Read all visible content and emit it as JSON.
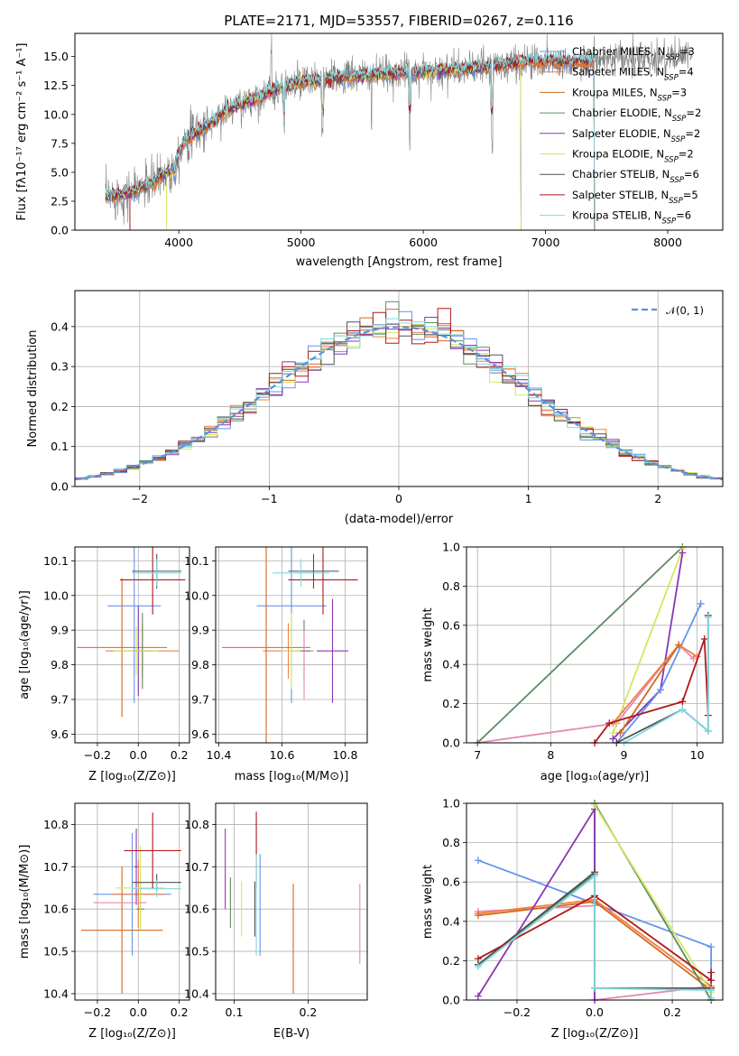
{
  "colors": {
    "chabrier_miles": "#6495ED",
    "salpeter_miles": "#F08040",
    "kroupa_miles": "#D2691E",
    "chabrier_elodie": "#5F8A60",
    "salpeter_elodie": "#8B35B5",
    "kroupa_elodie": "#D0E860",
    "chabrier_stelib": "#505050",
    "salpeter_stelib": "#B01818",
    "kroupa_stelib": "#80D8E0",
    "normal": "#5B8EE0",
    "pink": "#E888B8"
  },
  "chart_data": [
    {
      "id": "spectrum",
      "type": "line",
      "title": "PLATE=2171, MJD=53557, FIBERID=0267, z=0.116",
      "xlabel": "wavelength [Angstrom, rest frame]",
      "ylabel": "Flux [fλ10⁻¹⁷ erg cm⁻² s⁻¹ A⁻¹]",
      "xlim": [
        3150,
        8450
      ],
      "ylim": [
        0,
        17
      ],
      "xticks": [
        4000,
        5000,
        6000,
        7000,
        8000
      ],
      "yticks": [
        0.0,
        2.5,
        5.0,
        7.5,
        10.0,
        12.5,
        15.0
      ],
      "grid": false,
      "legend_position": "top-right",
      "continuum": {
        "x": [
          3400,
          3600,
          3800,
          3950,
          4050,
          4200,
          4400,
          4600,
          4800,
          5000,
          5200,
          5400,
          5600,
          5800,
          6000,
          6200,
          6400,
          6600,
          6800,
          7000,
          7200,
          7400,
          7600,
          7800,
          8000,
          8200
        ],
        "y": [
          2.9,
          3.2,
          4.2,
          5.5,
          7.8,
          8.8,
          10.4,
          11.3,
          12.2,
          12.8,
          13.0,
          13.3,
          13.4,
          13.6,
          13.7,
          13.8,
          14.0,
          14.2,
          14.5,
          14.6,
          14.5,
          14.6,
          14.7,
          14.8,
          14.9,
          15.0
        ]
      },
      "series": [
        {
          "name": "Chabrier MILES, N_SSP=3",
          "color": "#6495ED",
          "xmax": 7400
        },
        {
          "name": "Salpeter MILES, N_SSP=4",
          "color": "#F08040",
          "xmax": 7400
        },
        {
          "name": "Kroupa MILES, N_SSP=3",
          "color": "#D2691E",
          "xmax": 7400
        },
        {
          "name": "Chabrier ELODIE, N_SSP=2",
          "color": "#5F8A60",
          "xmax": 6800
        },
        {
          "name": "Salpeter ELODIE, N_SSP=2",
          "color": "#8B35B5",
          "xmax": 6800
        },
        {
          "name": "Kroupa ELODIE, N_SSP=2",
          "color": "#D0E860",
          "xmax": 6800
        },
        {
          "name": "Chabrier STELIB, N_SSP=6",
          "color": "#505050",
          "xmax": 7400
        },
        {
          "name": "Salpeter STELIB, N_SSP=5",
          "color": "#B01818",
          "xmax": 7400
        },
        {
          "name": "Kroupa STELIB, N_SSP=6",
          "color": "#80D8E0",
          "xmax": 7400
        }
      ],
      "legend_labels": [
        {
          "base": "Chabrier MILES, N",
          "sub": "SSP",
          "tail": "=3"
        },
        {
          "base": "Salpeter MILES, N",
          "sub": "SSP",
          "tail": "=4"
        },
        {
          "base": "Kroupa MILES, N",
          "sub": "SSP",
          "tail": "=3"
        },
        {
          "base": "Chabrier ELODIE, N",
          "sub": "SSP",
          "tail": "=2"
        },
        {
          "base": "Salpeter ELODIE, N",
          "sub": "SSP",
          "tail": "=2"
        },
        {
          "base": "Kroupa ELODIE, N",
          "sub": "SSP",
          "tail": "=2"
        },
        {
          "base": "Chabrier STELIB, N",
          "sub": "SSP",
          "tail": "=6"
        },
        {
          "base": "Salpeter STELIB, N",
          "sub": "SSP",
          "tail": "=5"
        },
        {
          "base": "Kroupa STELIB, N",
          "sub": "SSP",
          "tail": "=6"
        }
      ]
    },
    {
      "id": "residuals",
      "type": "histogram",
      "xlabel": "(data-model)/error",
      "ylabel": "Normed distribution",
      "xlim": [
        -2.5,
        2.5
      ],
      "ylim": [
        0,
        0.49
      ],
      "xticks": [
        -2,
        -1,
        0,
        1,
        2
      ],
      "xtick_labels": [
        "−2",
        "−1",
        "0",
        "1",
        "2"
      ],
      "yticks": [
        0.0,
        0.1,
        0.2,
        0.3,
        0.4
      ],
      "grid": true,
      "legend_position": "top-right",
      "legend_label": "𝒩(0, 1)",
      "bin_width": 0.1
    },
    {
      "id": "age_vs_Z",
      "type": "errorbar",
      "xlabel": "Z [log₁₀(Z/Z⊙)]",
      "ylabel": "age  [log₁₀(age/yr)]",
      "xlim": [
        -0.31,
        0.25
      ],
      "ylim": [
        9.575,
        10.14
      ],
      "xticks": [
        -0.2,
        0.0,
        0.2
      ],
      "xtick_labels": [
        "−0.2",
        "0.0",
        "0.2"
      ],
      "yticks": [
        9.6,
        9.7,
        9.8,
        9.9,
        10.0,
        10.1
      ],
      "grid": true,
      "points": [
        {
          "x": -0.02,
          "y": 9.97,
          "xerr": 0.13,
          "yerr": 0.28,
          "color": "#6495ED"
        },
        {
          "x": 0.02,
          "y": 9.84,
          "xerr": 0.18,
          "yerr": 0.08,
          "color": "#F08040"
        },
        {
          "x": -0.08,
          "y": 9.85,
          "xerr": 0.22,
          "yerr": 0.2,
          "color": "#D2691E"
        },
        {
          "x": 0.02,
          "y": 9.84,
          "xerr": 0.05,
          "yerr": 0.11,
          "color": "#5F8A60"
        },
        {
          "x": 0.0,
          "y": 9.84,
          "xerr": 0.02,
          "yerr": 0.13,
          "color": "#8B35B5"
        },
        {
          "x": -0.01,
          "y": 9.84,
          "xerr": 0.11,
          "yerr": 0.07,
          "color": "#D0E860"
        },
        {
          "x": 0.09,
          "y": 10.07,
          "xerr": 0.12,
          "yerr": 0.05,
          "color": "#505050"
        },
        {
          "x": 0.07,
          "y": 10.045,
          "xerr": 0.16,
          "yerr": 0.1,
          "color": "#B01818"
        },
        {
          "x": 0.09,
          "y": 10.065,
          "xerr": 0.12,
          "yerr": 0.04,
          "color": "#80D8E0"
        }
      ]
    },
    {
      "id": "age_vs_mass",
      "type": "errorbar",
      "xlabel": "mass [log₁₀(M/M⊙)]",
      "xlim": [
        10.39,
        10.87
      ],
      "ylim": [
        9.575,
        10.14
      ],
      "xticks": [
        10.4,
        10.6,
        10.8
      ],
      "yticks": [
        9.6,
        9.7,
        9.8,
        9.9,
        10.0,
        10.1
      ],
      "grid": true,
      "points": [
        {
          "x": 10.63,
          "y": 9.97,
          "xerr": 0.11,
          "yerr": 0.28,
          "color": "#6495ED"
        },
        {
          "x": 10.62,
          "y": 9.84,
          "xerr": 0.08,
          "yerr": 0.08,
          "color": "#F08040"
        },
        {
          "x": 10.55,
          "y": 9.85,
          "xerr": 0.14,
          "yerr": 0.3,
          "color": "#D2691E"
        },
        {
          "x": 10.67,
          "y": 9.84,
          "xerr": 0.02,
          "yerr": 0.09,
          "color": "#5F8A60"
        },
        {
          "x": 10.76,
          "y": 9.84,
          "xerr": 0.05,
          "yerr": 0.15,
          "color": "#8B35B5"
        },
        {
          "x": 10.63,
          "y": 9.84,
          "xerr": 0.03,
          "yerr": 0.11,
          "color": "#D0E860"
        },
        {
          "x": 10.7,
          "y": 10.07,
          "xerr": 0.08,
          "yerr": 0.05,
          "color": "#505050"
        },
        {
          "x": 10.73,
          "y": 10.045,
          "xerr": 0.11,
          "yerr": 0.1,
          "color": "#B01818"
        },
        {
          "x": 10.66,
          "y": 10.065,
          "xerr": 0.09,
          "yerr": 0.04,
          "color": "#80D8E0"
        },
        {
          "x": 10.67,
          "y": 9.8,
          "xerr": 0.0,
          "yerr": 0.1,
          "color": "#E888B8"
        }
      ]
    },
    {
      "id": "mass_weight_vs_age",
      "type": "line",
      "xlabel": "age  [log₁₀(age/yr)]",
      "ylabel": "mass weight",
      "xlim": [
        6.85,
        10.35
      ],
      "ylim": [
        0,
        1
      ],
      "xticks": [
        7,
        8,
        9,
        10
      ],
      "yticks": [
        0.0,
        0.2,
        0.4,
        0.6,
        0.8,
        1.0
      ],
      "grid": true,
      "series": [
        {
          "color": "#E888B8",
          "x": [
            7.0,
            8.9,
            9.75,
            9.95
          ],
          "y": [
            0.0,
            0.1,
            0.5,
            0.43
          ]
        },
        {
          "color": "#5F8A60",
          "x": [
            7.0,
            9.8
          ],
          "y": [
            0.0,
            1.0
          ]
        },
        {
          "color": "#D0E860",
          "x": [
            8.85,
            9.8
          ],
          "y": [
            0.05,
            0.99
          ]
        },
        {
          "color": "#8B35B5",
          "x": [
            8.85,
            9.5,
            9.8
          ],
          "y": [
            0.02,
            0.27,
            0.97
          ]
        },
        {
          "color": "#6495ED",
          "x": [
            8.9,
            9.5,
            10.05
          ],
          "y": [
            0.0,
            0.27,
            0.71
          ]
        },
        {
          "color": "#F08040",
          "x": [
            8.85,
            9.75,
            10.0
          ],
          "y": [
            0.1,
            0.5,
            0.44
          ]
        },
        {
          "color": "#D2691E",
          "x": [
            8.95,
            9.75
          ],
          "y": [
            0.05,
            0.5
          ]
        },
        {
          "color": "#505050",
          "x": [
            8.9,
            9.8,
            10.15,
            10.15
          ],
          "y": [
            0.0,
            0.17,
            0.06,
            0.65
          ]
        },
        {
          "color": "#B01818",
          "x": [
            8.6,
            8.8,
            9.8,
            10.1,
            10.15
          ],
          "y": [
            0.0,
            0.1,
            0.21,
            0.53,
            0.14
          ]
        },
        {
          "color": "#80D8E0",
          "x": [
            9.0,
            9.8,
            10.15,
            10.15
          ],
          "y": [
            0.0,
            0.17,
            0.06,
            0.64
          ]
        }
      ]
    },
    {
      "id": "mass_vs_Z",
      "type": "errorbar",
      "xlabel": "Z [log₁₀(Z/Z⊙)]",
      "ylabel": "mass [log₁₀(M/M⊙)]",
      "xlim": [
        -0.31,
        0.25
      ],
      "ylim": [
        10.385,
        10.85
      ],
      "xticks": [
        -0.2,
        0.0,
        0.2
      ],
      "xtick_labels": [
        "−0.2",
        "0.0",
        "0.2"
      ],
      "yticks": [
        10.4,
        10.5,
        10.6,
        10.7,
        10.8
      ],
      "grid": true,
      "points": [
        {
          "x": -0.03,
          "y": 10.635,
          "xerr": 0.19,
          "yerr": 0.145,
          "color": "#6495ED"
        },
        {
          "x": 0.0,
          "y": 10.635,
          "xerr": 0.13,
          "yerr": 0.08,
          "color": "#F08040"
        },
        {
          "x": -0.08,
          "y": 10.55,
          "xerr": 0.2,
          "yerr": 0.15,
          "color": "#D2691E"
        },
        {
          "x": 0.01,
          "y": 10.6,
          "xerr": 0.02,
          "yerr": 0.05,
          "color": "#5F8A60"
        },
        {
          "x": -0.01,
          "y": 10.7,
          "xerr": 0.01,
          "yerr": 0.09,
          "color": "#8B35B5"
        },
        {
          "x": 0.01,
          "y": 10.65,
          "xerr": 0.12,
          "yerr": 0.1,
          "color": "#D0E860"
        },
        {
          "x": 0.09,
          "y": 10.663,
          "xerr": 0.12,
          "yerr": 0.02,
          "color": "#505050"
        },
        {
          "x": 0.07,
          "y": 10.738,
          "xerr": 0.14,
          "yerr": 0.09,
          "color": "#B01818"
        },
        {
          "x": 0.09,
          "y": 10.648,
          "xerr": 0.12,
          "yerr": 0.02,
          "color": "#80D8E0"
        },
        {
          "x": -0.09,
          "y": 10.615,
          "xerr": 0.13,
          "yerr": 0.0,
          "color": "#E888B8"
        }
      ]
    },
    {
      "id": "mass_vs_EBV",
      "type": "errorbar",
      "xlabel": "E(B-V)",
      "xlim": [
        0.075,
        0.28
      ],
      "ylim": [
        10.385,
        10.85
      ],
      "xticks": [
        0.1,
        0.2
      ],
      "yticks": [
        10.4,
        10.5,
        10.6,
        10.7,
        10.8
      ],
      "grid": true,
      "points": [
        {
          "x": 0.135,
          "y": 10.61,
          "xerr": 0.0,
          "yerr": 0.12,
          "color": "#6495ED"
        },
        {
          "x": 0.18,
          "y": 10.53,
          "xerr": 0.0,
          "yerr": 0.13,
          "color": "#D2691E"
        },
        {
          "x": 0.095,
          "y": 10.615,
          "xerr": 0.0,
          "yerr": 0.06,
          "color": "#5F8A60"
        },
        {
          "x": 0.088,
          "y": 10.695,
          "xerr": 0.0,
          "yerr": 0.095,
          "color": "#8B35B5"
        },
        {
          "x": 0.11,
          "y": 10.6,
          "xerr": 0.0,
          "yerr": 0.065,
          "color": "#D0E860"
        },
        {
          "x": 0.128,
          "y": 10.6,
          "xerr": 0.0,
          "yerr": 0.065,
          "color": "#505050"
        },
        {
          "x": 0.13,
          "y": 10.74,
          "xerr": 0.0,
          "yerr": 0.09,
          "color": "#B01818"
        },
        {
          "x": 0.13,
          "y": 10.61,
          "xerr": 0.0,
          "yerr": 0.12,
          "color": "#80D8E0"
        },
        {
          "x": 0.27,
          "y": 10.565,
          "xerr": 0.0,
          "yerr": 0.095,
          "color": "#E888B8"
        }
      ]
    },
    {
      "id": "mass_weight_vs_Z",
      "type": "line",
      "xlabel": "Z [log₁₀(Z/Z⊙)]",
      "ylabel": "mass weight",
      "xlim": [
        -0.33,
        0.33
      ],
      "ylim": [
        0,
        1
      ],
      "xticks": [
        -0.2,
        0.0,
        0.2
      ],
      "xtick_labels": [
        "−0.2",
        "0.0",
        "0.2"
      ],
      "yticks": [
        0.0,
        0.2,
        0.4,
        0.6,
        0.8,
        1.0
      ],
      "grid": true,
      "series": [
        {
          "color": "#E888B8",
          "x": [
            -0.3,
            0.0,
            0.0,
            0.3
          ],
          "y": [
            0.45,
            0.48,
            0.0,
            0.07
          ]
        },
        {
          "color": "#6495ED",
          "x": [
            -0.3,
            0.3,
            0.3
          ],
          "y": [
            0.71,
            0.27,
            0.06
          ]
        },
        {
          "color": "#F08040",
          "x": [
            -0.3,
            0.0,
            0.3
          ],
          "y": [
            0.44,
            0.51,
            0.07
          ]
        },
        {
          "color": "#D2691E",
          "x": [
            -0.3,
            0.0,
            0.3
          ],
          "y": [
            0.43,
            0.5,
            0.05
          ]
        },
        {
          "color": "#5F8A60",
          "x": [
            -0.3,
            0.0,
            0.0,
            0.3
          ],
          "y": [
            0.18,
            0.64,
            1.0,
            0.0
          ]
        },
        {
          "color": "#8B35B5",
          "x": [
            -0.3,
            0.0,
            0.0
          ],
          "y": [
            0.02,
            0.97,
            0.0
          ]
        },
        {
          "color": "#D0E860",
          "x": [
            0.0,
            0.3
          ],
          "y": [
            0.99,
            0.04
          ]
        },
        {
          "color": "#505050",
          "x": [
            -0.3,
            0.0,
            0.0,
            0.3,
            0.3
          ],
          "y": [
            0.18,
            0.65,
            0.06,
            0.06,
            0.0
          ]
        },
        {
          "color": "#B01818",
          "x": [
            -0.3,
            0.0,
            0.3,
            0.3
          ],
          "y": [
            0.21,
            0.53,
            0.1,
            0.14
          ]
        },
        {
          "color": "#80D8E0",
          "x": [
            -0.3,
            0.0,
            0.0,
            0.3,
            0.3
          ],
          "y": [
            0.17,
            0.63,
            0.06,
            0.05,
            0.01
          ]
        }
      ]
    }
  ]
}
